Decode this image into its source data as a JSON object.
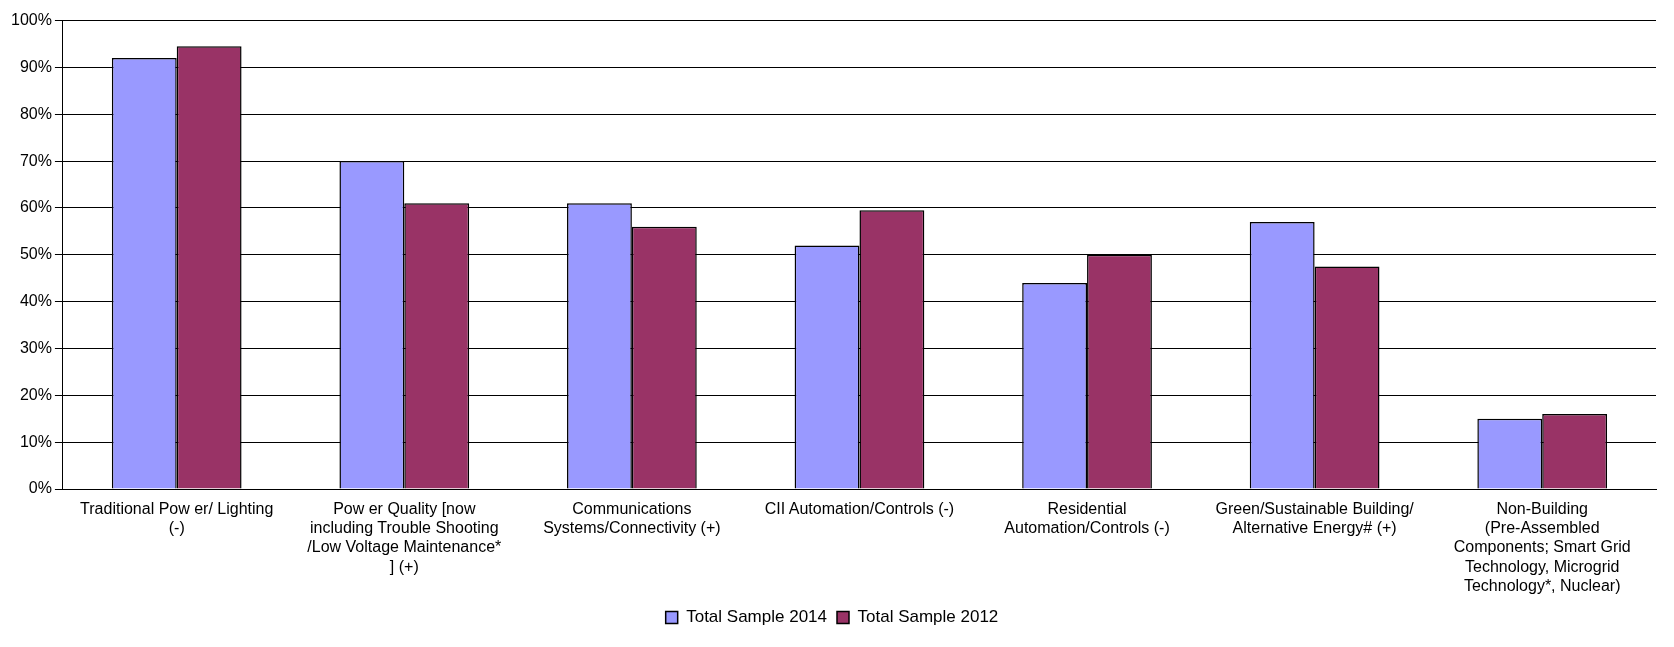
{
  "chart_data": {
    "type": "bar",
    "categories": [
      "Traditional Pow er/ Lighting (-)",
      "Pow er Quality [now including Trouble Shooting /Low Voltage Maintenance* ] (+)",
      "Communications Systems/Connectivity (+)",
      "CII Automation/Controls (-)",
      "Residential Automation/Controls (-)",
      "Green/Sustainable Building/ Alternative Energy# (+)",
      "Non-Building (Pre-Assembled Components; Smart Grid Technology, Microgrid Technology*, Nuclear)"
    ],
    "series": [
      {
        "name": "Total Sample 2014",
        "color": "#9999ff",
        "values": [
          92,
          70,
          61,
          52,
          44,
          57,
          15
        ]
      },
      {
        "name": "Total Sample 2012",
        "color": "#993366",
        "values": [
          94.5,
          61,
          56,
          59.5,
          50,
          47.5,
          16
        ]
      }
    ],
    "ylim": [
      0,
      100
    ],
    "yticks": [
      {
        "value": 0,
        "label": "0%"
      },
      {
        "value": 10,
        "label": "10%"
      },
      {
        "value": 20,
        "label": "20%"
      },
      {
        "value": 30,
        "label": "30%"
      },
      {
        "value": 40,
        "label": "40%"
      },
      {
        "value": 50,
        "label": "50%"
      },
      {
        "value": 60,
        "label": "60%"
      },
      {
        "value": 70,
        "label": "70%"
      },
      {
        "value": 80,
        "label": "80%"
      },
      {
        "value": 90,
        "label": "90%"
      },
      {
        "value": 100,
        "label": "100%"
      }
    ],
    "grid": "y",
    "legend": "bottom"
  }
}
